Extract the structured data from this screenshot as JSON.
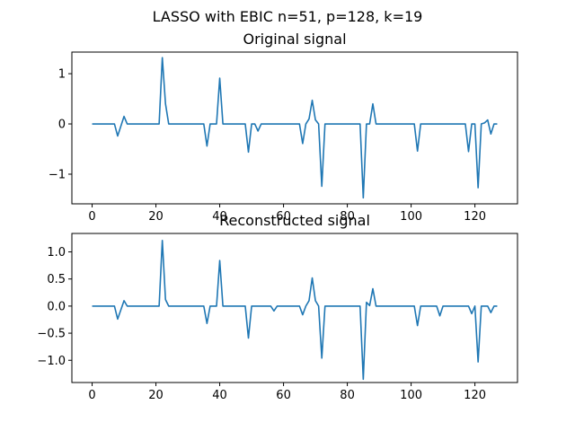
{
  "figure": {
    "suptitle": "LASSO with EBIC n=51, p=128, k=19"
  },
  "chart_data": [
    {
      "type": "line",
      "title": "Original signal",
      "xlabel": "",
      "ylabel": "",
      "xlim": [
        -6.35,
        133.35
      ],
      "ylim": [
        -1.59,
        1.43
      ],
      "xticks": [
        0,
        20,
        40,
        60,
        80,
        100,
        120
      ],
      "yticks": [
        -1,
        0,
        1
      ],
      "ytick_labels": [
        "−1",
        "0",
        "1"
      ],
      "grid": false,
      "series_color": "#1f77b4",
      "points": [
        [
          0,
          0
        ],
        [
          7,
          0
        ],
        [
          8,
          -0.24
        ],
        [
          10,
          0.15
        ],
        [
          11,
          0
        ],
        [
          21,
          0
        ],
        [
          22,
          1.32
        ],
        [
          23,
          0.4
        ],
        [
          24,
          0
        ],
        [
          35,
          0
        ],
        [
          36,
          -0.44
        ],
        [
          37,
          0
        ],
        [
          39,
          0
        ],
        [
          40,
          0.91
        ],
        [
          41,
          0
        ],
        [
          48,
          0
        ],
        [
          49,
          -0.56
        ],
        [
          50,
          0
        ],
        [
          51,
          0
        ],
        [
          52,
          -0.14
        ],
        [
          53,
          0
        ],
        [
          65,
          0
        ],
        [
          66,
          -0.39
        ],
        [
          67,
          0
        ],
        [
          68,
          0.1
        ],
        [
          69,
          0.47
        ],
        [
          70,
          0.08
        ],
        [
          71,
          0
        ],
        [
          72,
          -1.24
        ],
        [
          73,
          0
        ],
        [
          84,
          0
        ],
        [
          85,
          -1.47
        ],
        [
          86,
          0
        ],
        [
          87,
          0
        ],
        [
          88,
          0.4
        ],
        [
          89,
          0
        ],
        [
          101,
          0
        ],
        [
          102,
          -0.54
        ],
        [
          103,
          0
        ],
        [
          117,
          0
        ],
        [
          118,
          -0.55
        ],
        [
          119,
          0
        ],
        [
          120,
          0
        ],
        [
          121,
          -1.27
        ],
        [
          122,
          0
        ],
        [
          123,
          0.02
        ],
        [
          124,
          0.08
        ],
        [
          125,
          -0.2
        ],
        [
          126,
          0
        ],
        [
          127,
          0
        ]
      ]
    },
    {
      "type": "line",
      "title": "Reconstructed signal",
      "xlabel": "",
      "ylabel": "",
      "xlim": [
        -6.35,
        133.35
      ],
      "ylim": [
        -1.41,
        1.34
      ],
      "xticks": [
        0,
        20,
        40,
        60,
        80,
        100,
        120
      ],
      "yticks": [
        -1.0,
        -0.5,
        0.0,
        0.5,
        1.0
      ],
      "ytick_labels": [
        "−1.0",
        "−0.5",
        "0.0",
        "0.5",
        "1.0"
      ],
      "grid": false,
      "series_color": "#1f77b4",
      "points": [
        [
          0,
          0
        ],
        [
          7,
          0
        ],
        [
          8,
          -0.24
        ],
        [
          10,
          0.1
        ],
        [
          11,
          0
        ],
        [
          21,
          0
        ],
        [
          22,
          1.21
        ],
        [
          23,
          0.12
        ],
        [
          24,
          0
        ],
        [
          35,
          0
        ],
        [
          36,
          -0.32
        ],
        [
          37,
          0
        ],
        [
          39,
          0
        ],
        [
          40,
          0.84
        ],
        [
          41,
          0
        ],
        [
          48,
          0
        ],
        [
          49,
          -0.59
        ],
        [
          50,
          0
        ],
        [
          56,
          0
        ],
        [
          57,
          -0.09
        ],
        [
          58,
          0
        ],
        [
          65,
          0
        ],
        [
          66,
          -0.16
        ],
        [
          67,
          0
        ],
        [
          68,
          0.1
        ],
        [
          69,
          0.52
        ],
        [
          70,
          0.1
        ],
        [
          71,
          0
        ],
        [
          72,
          -0.96
        ],
        [
          73,
          0
        ],
        [
          84,
          0
        ],
        [
          85,
          -1.35
        ],
        [
          86,
          0.07
        ],
        [
          87,
          0.01
        ],
        [
          88,
          0.32
        ],
        [
          89,
          0
        ],
        [
          101,
          0
        ],
        [
          102,
          -0.36
        ],
        [
          103,
          0
        ],
        [
          108,
          0
        ],
        [
          109,
          -0.18
        ],
        [
          110,
          0
        ],
        [
          118,
          0
        ],
        [
          119,
          -0.14
        ],
        [
          120,
          0
        ],
        [
          121,
          -1.03
        ],
        [
          122,
          0
        ],
        [
          124,
          0
        ],
        [
          125,
          -0.12
        ],
        [
          126,
          0
        ],
        [
          127,
          0
        ]
      ]
    }
  ]
}
